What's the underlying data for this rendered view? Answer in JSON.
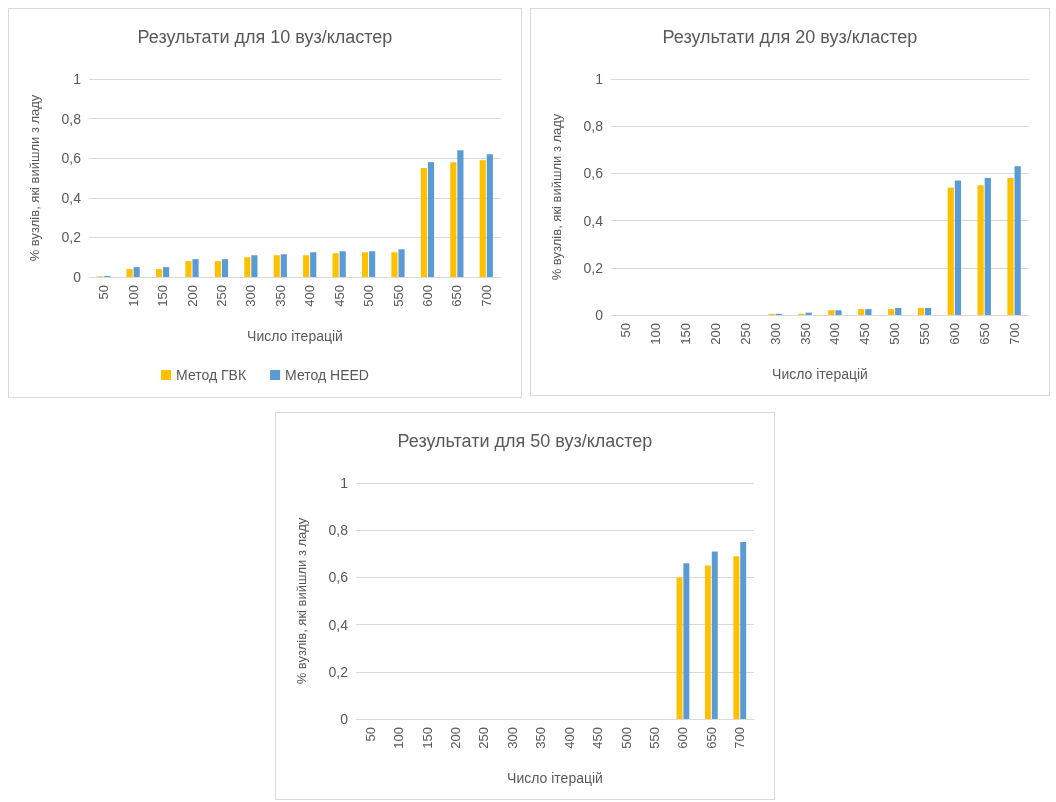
{
  "chart_data": [
    {
      "type": "bar",
      "title": "Результати для 10 вуз/кластер",
      "xlabel": "Число ітерацій",
      "ylabel": "% вузлів, які вийшли з ладу",
      "categories": [
        "50",
        "100",
        "150",
        "200",
        "250",
        "300",
        "350",
        "400",
        "450",
        "500",
        "550",
        "600",
        "650",
        "700"
      ],
      "series": [
        {
          "name": "Метод ГВК",
          "color": "#ffc000",
          "values": [
            0.003,
            0.04,
            0.04,
            0.08,
            0.08,
            0.1,
            0.11,
            0.11,
            0.12,
            0.125,
            0.125,
            0.55,
            0.58,
            0.59
          ]
        },
        {
          "name": "Метод HEED",
          "color": "#5b9bd5",
          "values": [
            0.005,
            0.05,
            0.05,
            0.09,
            0.09,
            0.11,
            0.115,
            0.125,
            0.13,
            0.13,
            0.14,
            0.58,
            0.64,
            0.62
          ]
        }
      ],
      "ylim": [
        0,
        1
      ],
      "yticks": [
        {
          "value": 0,
          "label": "0"
        },
        {
          "value": 0.2,
          "label": "0,2"
        },
        {
          "value": 0.4,
          "label": "0,4"
        },
        {
          "value": 0.6,
          "label": "0,6"
        },
        {
          "value": 0.8,
          "label": "0,8"
        },
        {
          "value": 1,
          "label": "1"
        }
      ],
      "grid": "y",
      "legend": "bottom"
    },
    {
      "type": "bar",
      "title": "Результати для 20 вуз/кластер",
      "xlabel": "Число ітерацій",
      "ylabel": "% вузлів, які вийшли з ладу",
      "categories": [
        "50",
        "100",
        "150",
        "200",
        "250",
        "300",
        "350",
        "400",
        "450",
        "500",
        "550",
        "600",
        "650",
        "700"
      ],
      "series": [
        {
          "color": "#ffc000",
          "values": [
            0,
            0,
            0,
            0,
            0,
            0.005,
            0.005,
            0.02,
            0.025,
            0.025,
            0.03,
            0.54,
            0.55,
            0.58
          ]
        },
        {
          "color": "#5b9bd5",
          "values": [
            0,
            0,
            0,
            0,
            0,
            0.005,
            0.01,
            0.02,
            0.025,
            0.03,
            0.03,
            0.57,
            0.58,
            0.63
          ]
        }
      ],
      "ylim": [
        0,
        1
      ],
      "yticks": [
        {
          "value": 0,
          "label": "0"
        },
        {
          "value": 0.2,
          "label": "0,2"
        },
        {
          "value": 0.4,
          "label": "0,4"
        },
        {
          "value": 0.6,
          "label": "0,6"
        },
        {
          "value": 0.8,
          "label": "0,8"
        },
        {
          "value": 1,
          "label": "1"
        }
      ],
      "grid": "y"
    },
    {
      "type": "bar",
      "title": "Результати для 50 вуз/кластер",
      "xlabel": "Число ітерацій",
      "ylabel": "% вузлів, які вийшли з ладу",
      "categories": [
        "50",
        "100",
        "150",
        "200",
        "250",
        "300",
        "350",
        "400",
        "450",
        "500",
        "550",
        "600",
        "650",
        "700"
      ],
      "series": [
        {
          "color": "#ffc000",
          "values": [
            0,
            0,
            0,
            0,
            0,
            0,
            0,
            0,
            0,
            0,
            0,
            0.6,
            0.65,
            0.69
          ]
        },
        {
          "color": "#5b9bd5",
          "values": [
            0,
            0,
            0,
            0,
            0,
            0,
            0,
            0,
            0,
            0,
            0,
            0.66,
            0.71,
            0.75
          ]
        }
      ],
      "ylim": [
        0,
        1
      ],
      "yticks": [
        {
          "value": 0,
          "label": "0"
        },
        {
          "value": 0.2,
          "label": "0,2"
        },
        {
          "value": 0.4,
          "label": "0,4"
        },
        {
          "value": 0.6,
          "label": "0,6"
        },
        {
          "value": 0.8,
          "label": "0,8"
        },
        {
          "value": 1,
          "label": "1"
        }
      ],
      "grid": "y"
    }
  ]
}
